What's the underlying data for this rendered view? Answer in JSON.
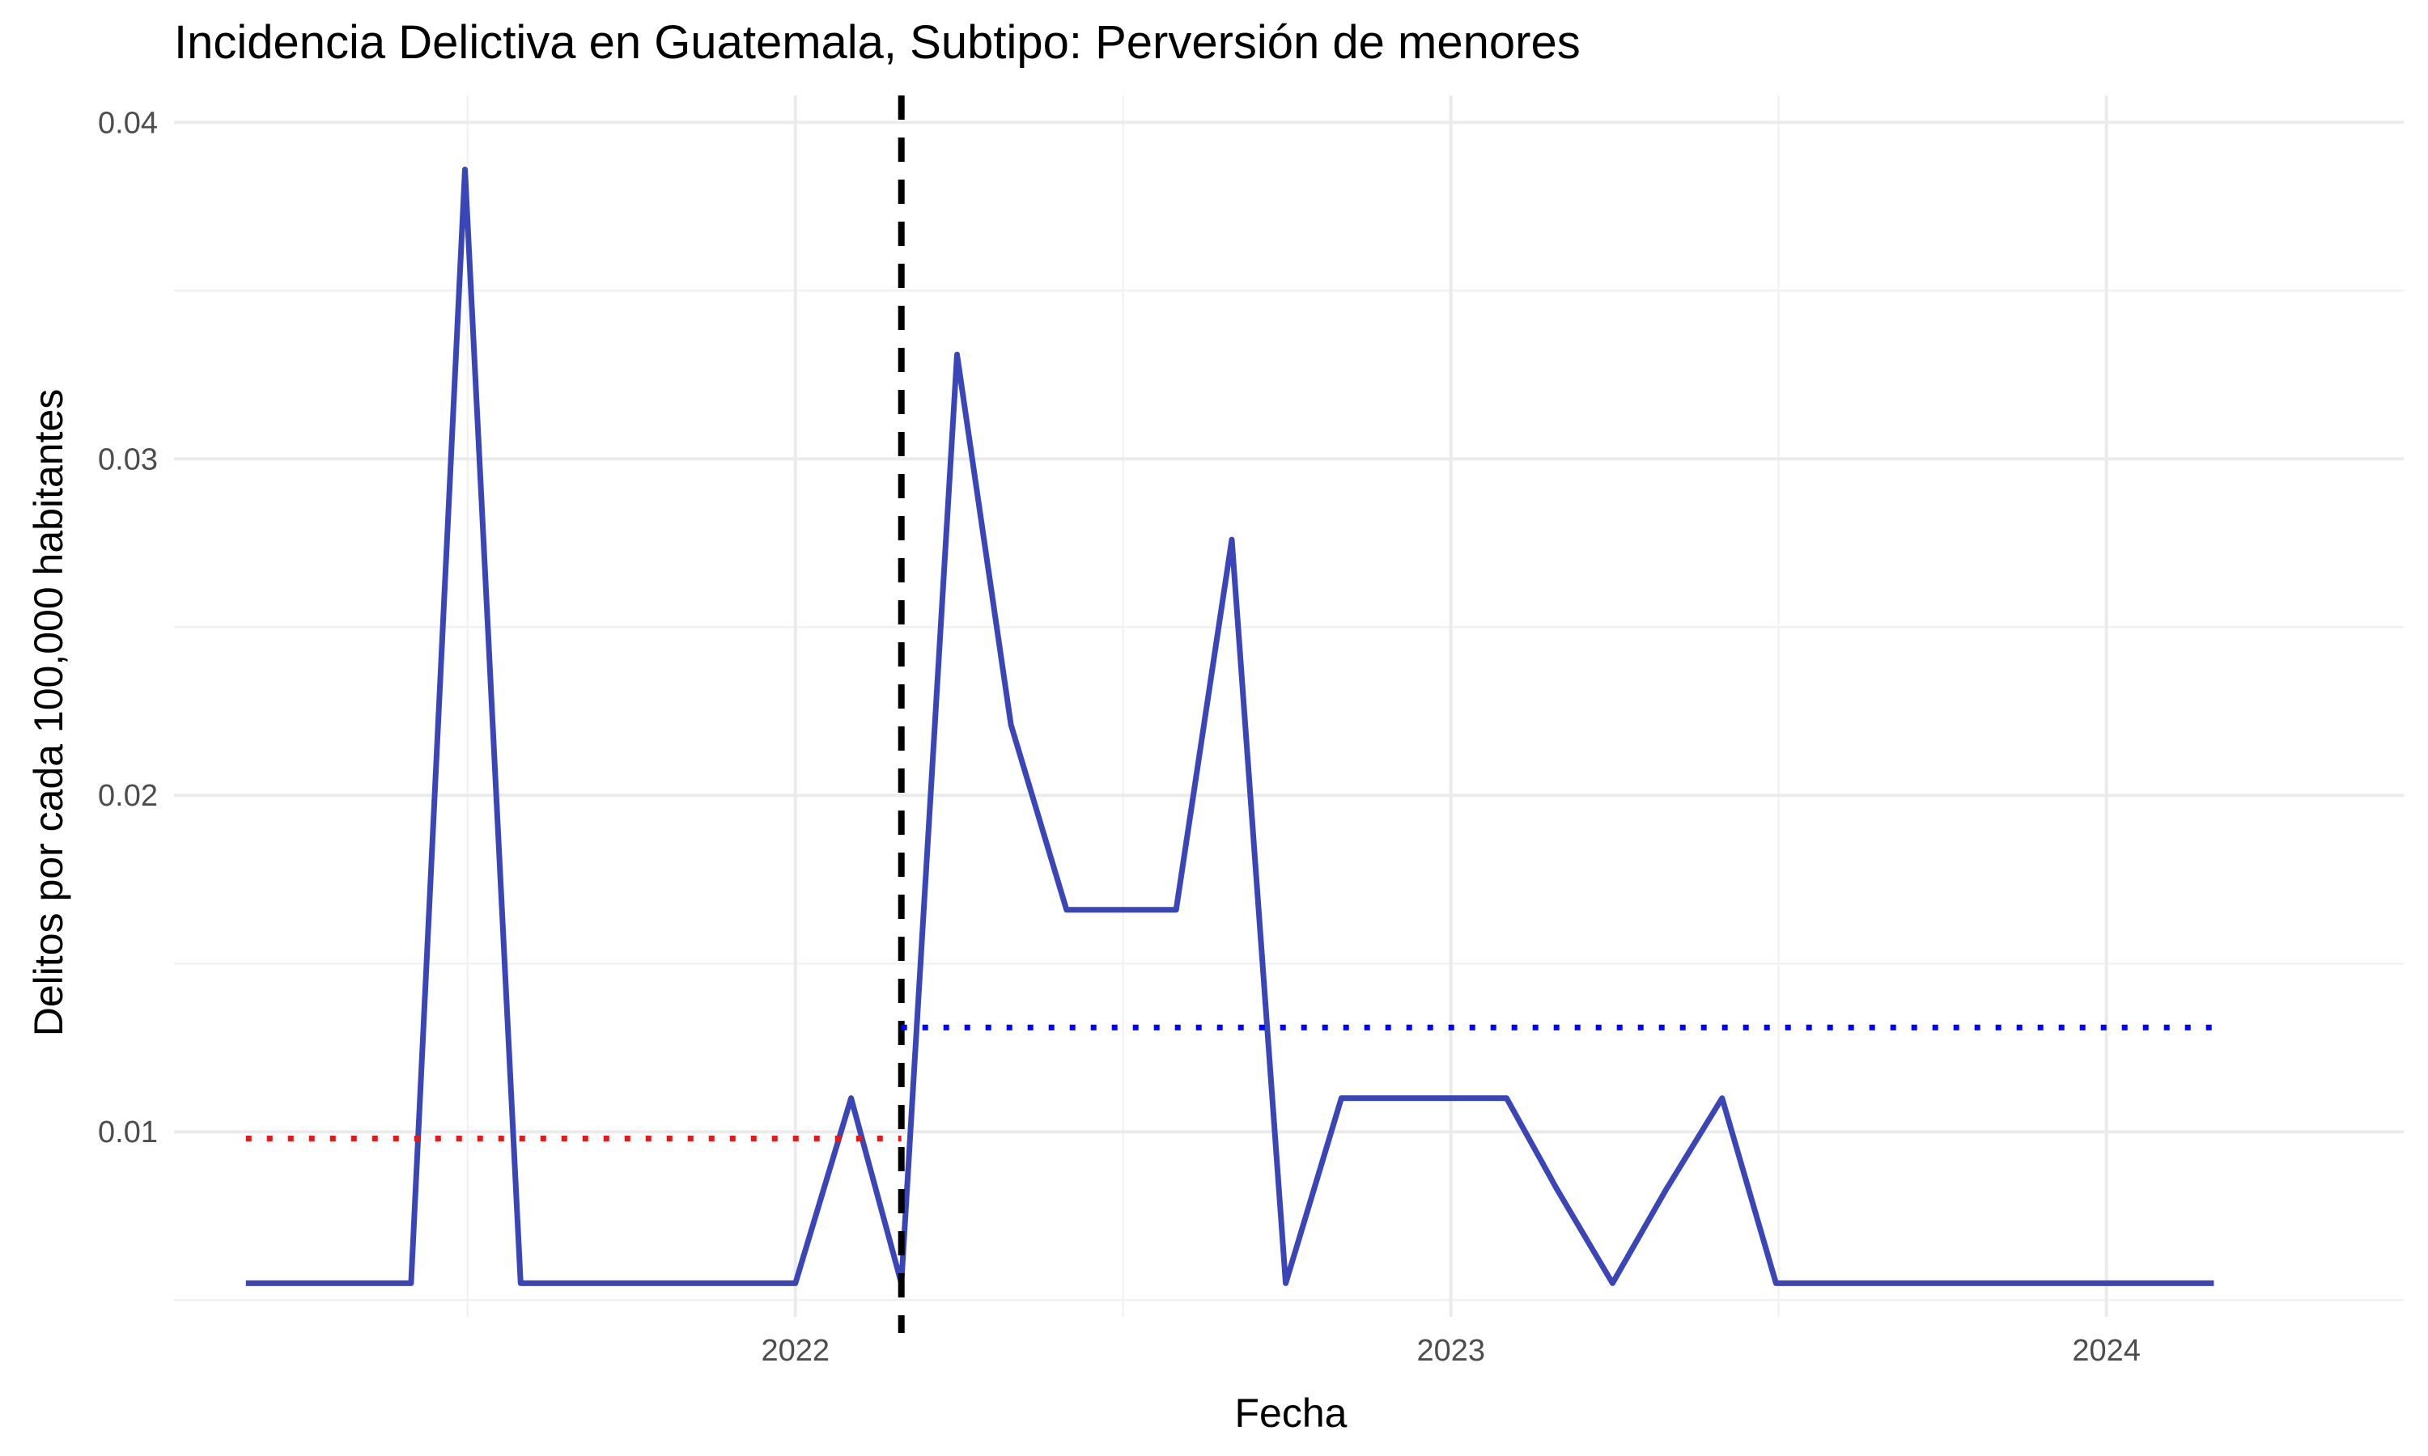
{
  "chart_data": {
    "type": "line",
    "title": "Incidencia Delictiva en Guatemala, Subtipo: Perversión de menores",
    "xlabel": "Fecha",
    "ylabel": "Delitos por cada 100,000 habitantes",
    "x_ticks": [
      "2022",
      "2023",
      "2024"
    ],
    "y_ticks": [
      "0.01",
      "0.02",
      "0.03",
      "0.04"
    ],
    "ylim": [
      0.0045,
      0.0408
    ],
    "xlim": [
      "2021-01-20",
      "2024-06-15"
    ],
    "grid": true,
    "legend": "none",
    "series": [
      {
        "color": "#3a46b8",
        "points": [
          {
            "x": "2021-03-01",
            "y": 0.0055
          },
          {
            "x": "2021-04-01",
            "y": 0.0055
          },
          {
            "x": "2021-05-01",
            "y": 0.0055
          },
          {
            "x": "2021-06-01",
            "y": 0.0055
          },
          {
            "x": "2021-07-01",
            "y": 0.0386
          },
          {
            "x": "2021-08-01",
            "y": 0.0055
          },
          {
            "x": "2021-09-01",
            "y": 0.0055
          },
          {
            "x": "2021-10-01",
            "y": 0.0055
          },
          {
            "x": "2021-11-01",
            "y": 0.0055
          },
          {
            "x": "2021-12-01",
            "y": 0.0055
          },
          {
            "x": "2022-01-01",
            "y": 0.0055
          },
          {
            "x": "2022-02-01",
            "y": 0.011
          },
          {
            "x": "2022-03-01",
            "y": 0.0055
          },
          {
            "x": "2022-04-01",
            "y": 0.0331
          },
          {
            "x": "2022-05-01",
            "y": 0.0221
          },
          {
            "x": "2022-06-01",
            "y": 0.0166
          },
          {
            "x": "2022-07-01",
            "y": 0.0166
          },
          {
            "x": "2022-08-01",
            "y": 0.0166
          },
          {
            "x": "2022-09-01",
            "y": 0.0276
          },
          {
            "x": "2022-10-01",
            "y": 0.0055
          },
          {
            "x": "2022-11-01",
            "y": 0.011
          },
          {
            "x": "2022-12-01",
            "y": 0.011
          },
          {
            "x": "2023-01-01",
            "y": 0.011
          },
          {
            "x": "2023-02-01",
            "y": 0.011
          },
          {
            "x": "2023-03-01",
            "y": 0.0083
          },
          {
            "x": "2023-04-01",
            "y": 0.0055
          },
          {
            "x": "2023-05-01",
            "y": 0.0083
          },
          {
            "x": "2023-06-01",
            "y": 0.011
          },
          {
            "x": "2023-07-01",
            "y": 0.0055
          },
          {
            "x": "2023-08-01",
            "y": 0.0055
          },
          {
            "x": "2023-09-01",
            "y": 0.0055
          },
          {
            "x": "2023-10-01",
            "y": 0.0055
          },
          {
            "x": "2023-11-01",
            "y": 0.0055
          },
          {
            "x": "2023-12-01",
            "y": 0.0055
          },
          {
            "x": "2024-01-01",
            "y": 0.0055
          },
          {
            "x": "2024-02-01",
            "y": 0.0055
          },
          {
            "x": "2024-03-01",
            "y": 0.0055
          }
        ]
      }
    ],
    "reference_lines": [
      {
        "kind": "vertical",
        "style": "dashed",
        "color": "#000000",
        "x": "2022-03-01"
      },
      {
        "kind": "horizontal",
        "style": "dotted",
        "color": "#e31a1c",
        "y": 0.0098,
        "x_start": "2021-03-01",
        "x_end": "2022-03-01"
      },
      {
        "kind": "horizontal",
        "style": "dotted",
        "color": "#0000ff",
        "y": 0.0131,
        "x_start": "2022-03-01",
        "x_end": "2024-03-01"
      }
    ]
  }
}
